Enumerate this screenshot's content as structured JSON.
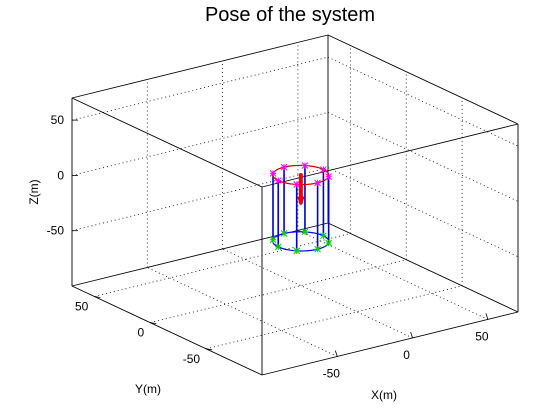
{
  "chart_data": {
    "type": "3d-line",
    "title": "Pose of the system",
    "xlabel": "X(m)",
    "ylabel": "Y(m)",
    "zlabel": "Z(m)",
    "xlim": [
      -100,
      70
    ],
    "ylim": [
      -100,
      70
    ],
    "zlim": [
      -100,
      70
    ],
    "xticks": [
      -50,
      0,
      50
    ],
    "yticks": [
      -50,
      0,
      50
    ],
    "zticks": [
      -50,
      0,
      50
    ],
    "grid": true,
    "platform": {
      "top_z": 0,
      "bottom_z": -60,
      "radius": 15,
      "point_count": 8,
      "top_color": "#cc0000",
      "top_marker_color": "#ff00ff",
      "bottom_color": "#0000ff",
      "bottom_marker_color": "#00cc00",
      "leg_color": "#0000cc",
      "arrow_color": "#ee0000",
      "arrow_z_range": [
        0,
        -25
      ]
    }
  }
}
